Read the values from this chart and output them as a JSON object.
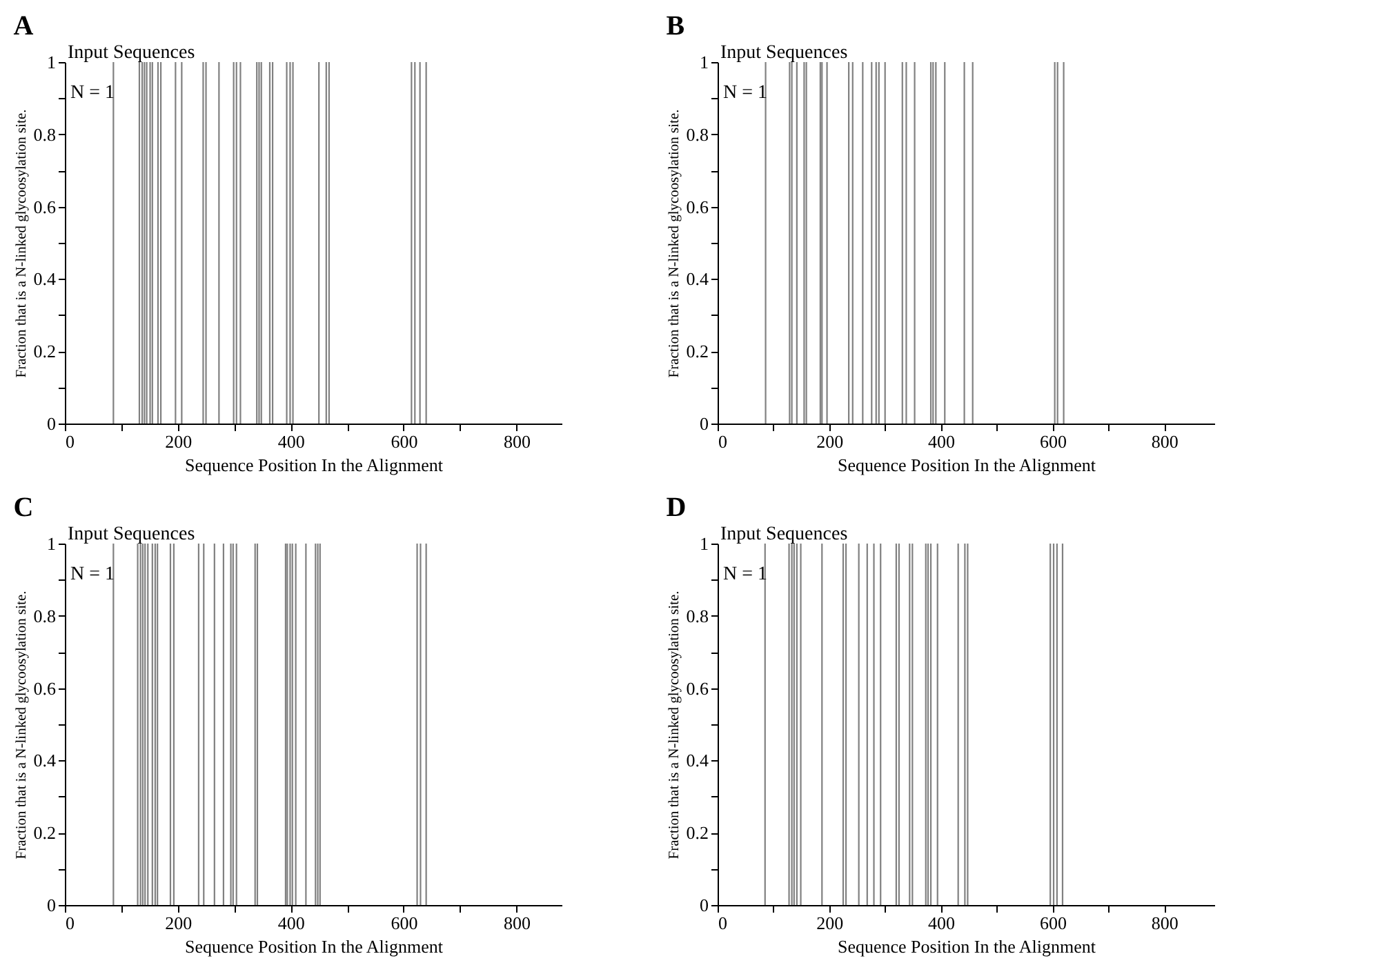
{
  "chart_data": [
    {
      "type": "bar",
      "title": "A",
      "xlabel": "Sequence Position In the Alignment",
      "ylabel": "Fraction that is a N-linked glycoosylation site.",
      "annotations": [
        "Input Sequences",
        "N = 1"
      ],
      "color": "#808080",
      "xlim": [
        0,
        880
      ],
      "ylim": [
        0,
        1
      ],
      "xticks": [
        0,
        {
          "value": 100,
          "label": null
        },
        200,
        {
          "value": 300,
          "label": null
        },
        400,
        {
          "value": 500,
          "label": null
        },
        600,
        {
          "value": 700,
          "label": null
        },
        800
      ],
      "yticks": [
        0,
        {
          "value": 0.1,
          "label": null
        },
        0.2,
        {
          "value": 0.3,
          "label": null
        },
        0.4,
        {
          "value": 0.5,
          "label": null
        },
        0.6,
        {
          "value": 0.7,
          "label": null
        },
        0.8,
        {
          "value": 0.9,
          "label": null
        },
        1
      ],
      "x": [
        86,
        132,
        137,
        141,
        145,
        151,
        155,
        165,
        170,
        196,
        207,
        245,
        250,
        273,
        299,
        304,
        311,
        340,
        344,
        348,
        363,
        368,
        393,
        399,
        404,
        450,
        463,
        468,
        614,
        620,
        629,
        640
      ],
      "values": [
        1,
        1,
        1,
        1,
        1,
        1,
        1,
        1,
        1,
        1,
        1,
        1,
        1,
        1,
        1,
        1,
        1,
        1,
        1,
        1,
        1,
        1,
        1,
        1,
        1,
        1,
        1,
        1,
        1,
        1,
        1,
        1
      ]
    },
    {
      "type": "bar",
      "title": "B",
      "xlabel": "Sequence Position In the Alignment",
      "ylabel": "Fraction that is a N-linked glycoosylation site.",
      "annotations": [
        "Input Sequences",
        "N = 1"
      ],
      "color": "#808080",
      "xlim": [
        0,
        890
      ],
      "ylim": [
        0,
        1
      ],
      "xticks": [
        0,
        {
          "value": 100,
          "label": null
        },
        200,
        {
          "value": 300,
          "label": null
        },
        400,
        {
          "value": 500,
          "label": null
        },
        600,
        {
          "value": 700,
          "label": null
        },
        800
      ],
      "yticks": [
        0,
        {
          "value": 0.1,
          "label": null
        },
        0.2,
        {
          "value": 0.3,
          "label": null
        },
        0.4,
        {
          "value": 0.5,
          "label": null
        },
        0.6,
        {
          "value": 0.7,
          "label": null
        },
        0.8,
        {
          "value": 0.9,
          "label": null
        },
        1
      ],
      "x": [
        86,
        129,
        133,
        142,
        155,
        159,
        184,
        187,
        196,
        235,
        242,
        260,
        276,
        284,
        289,
        300,
        331,
        338,
        353,
        382,
        386,
        391,
        407,
        442,
        457,
        604,
        609,
        620
      ],
      "values": [
        1,
        1,
        1,
        1,
        1,
        1,
        1,
        1,
        1,
        1,
        1,
        1,
        1,
        1,
        1,
        1,
        1,
        1,
        1,
        1,
        1,
        1,
        1,
        1,
        1,
        1,
        1,
        1
      ]
    },
    {
      "type": "bar",
      "title": "C",
      "xlabel": "Sequence Position In the Alignment",
      "ylabel": "Fraction that is a N-linked glycoosylation site.",
      "annotations": [
        "Input Sequences",
        "N = 1"
      ],
      "color": "#808080",
      "xlim": [
        0,
        880
      ],
      "ylim": [
        0,
        1
      ],
      "xticks": [
        0,
        {
          "value": 100,
          "label": null
        },
        200,
        {
          "value": 300,
          "label": null
        },
        400,
        {
          "value": 500,
          "label": null
        },
        600,
        {
          "value": 700,
          "label": null
        },
        800
      ],
      "yticks": [
        0,
        {
          "value": 0.1,
          "label": null
        },
        0.2,
        {
          "value": 0.3,
          "label": null
        },
        0.4,
        {
          "value": 0.5,
          "label": null
        },
        0.6,
        {
          "value": 0.7,
          "label": null
        },
        0.8,
        {
          "value": 0.9,
          "label": null
        },
        1
      ],
      "x": [
        86,
        129,
        134,
        138,
        142,
        147,
        155,
        160,
        164,
        187,
        193,
        237,
        246,
        265,
        281,
        294,
        298,
        304,
        337,
        341,
        391,
        394,
        399,
        403,
        409,
        427,
        444,
        448,
        452,
        624,
        630,
        640
      ],
      "values": [
        1,
        1,
        1,
        1,
        1,
        1,
        1,
        1,
        1,
        1,
        1,
        1,
        1,
        1,
        1,
        1,
        1,
        1,
        1,
        1,
        1,
        1,
        1,
        1,
        1,
        1,
        1,
        1,
        1,
        1,
        1,
        1
      ]
    },
    {
      "type": "bar",
      "title": "D",
      "xlabel": "Sequence Position In the Alignment",
      "ylabel": "Fraction that is a N-linked glycoosylation site.",
      "annotations": [
        "Input Sequences",
        "N = 1"
      ],
      "color": "#808080",
      "xlim": [
        0,
        890
      ],
      "ylim": [
        0,
        1
      ],
      "xticks": [
        0,
        {
          "value": 100,
          "label": null
        },
        200,
        {
          "value": 300,
          "label": null
        },
        400,
        {
          "value": 500,
          "label": null
        },
        600,
        {
          "value": 700,
          "label": null
        },
        800
      ],
      "yticks": [
        0,
        {
          "value": 0.1,
          "label": null
        },
        0.2,
        {
          "value": 0.3,
          "label": null
        },
        0.4,
        {
          "value": 0.5,
          "label": null
        },
        0.6,
        {
          "value": 0.7,
          "label": null
        },
        0.8,
        {
          "value": 0.9,
          "label": null
        },
        1
      ],
      "x": [
        85,
        128,
        133,
        137,
        142,
        149,
        187,
        225,
        230,
        253,
        268,
        280,
        292,
        320,
        325,
        344,
        349,
        373,
        377,
        382,
        394,
        431,
        443,
        448,
        596,
        602,
        608,
        618
      ],
      "values": [
        1,
        1,
        1,
        1,
        1,
        1,
        1,
        1,
        1,
        1,
        1,
        1,
        1,
        1,
        1,
        1,
        1,
        1,
        1,
        1,
        1,
        1,
        1,
        1,
        1,
        1,
        1,
        1
      ]
    }
  ]
}
